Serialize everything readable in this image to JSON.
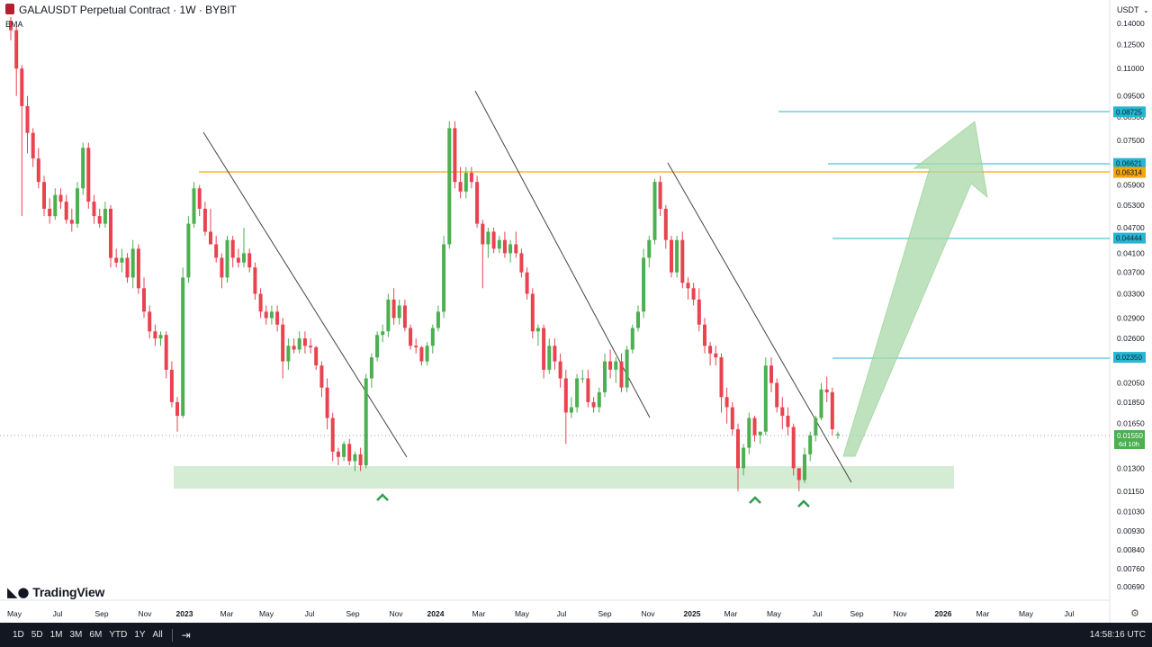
{
  "header": {
    "title": "GALAUSDT Perpetual Contract · 1W · BYBIT",
    "indicator": "EMA"
  },
  "brand": {
    "name": "TradingView",
    "icon": "tradingview-logo-icon"
  },
  "price_scale": {
    "currency_label": "USDT"
  },
  "footer": {
    "timeframes": [
      "1D",
      "5D",
      "1M",
      "3M",
      "6M",
      "YTD",
      "1Y",
      "All"
    ],
    "calendar_icon": "calendar-range-icon",
    "clock": "14:58:16 UTC",
    "settings_icon": "gear-icon"
  },
  "colors": {
    "up": "#4caf50",
    "down": "#e8434f",
    "resistance": "#f2a60c",
    "target": "#26b5d2",
    "support_zone": "#cfeacf",
    "arrow": "#a9d9a7"
  },
  "chart_data": {
    "type": "candlestick",
    "symbol": "GALAUSDT",
    "interval": "1W",
    "exchange": "BYBIT",
    "yscale": "log",
    "ylim": [
      0.0063,
      0.145
    ],
    "y_ticks": [
      "0.14000",
      "0.12500",
      "0.11000",
      "0.09500",
      "0.08500",
      "0.07500",
      "0.06500",
      "0.05900",
      "0.05300",
      "0.04700",
      "0.04100",
      "0.03700",
      "0.03300",
      "0.02900",
      "0.02600",
      "0.02050",
      "0.01850",
      "0.01650",
      "0.01300",
      "0.01150",
      "0.01030",
      "0.00930",
      "0.00840",
      "0.00760",
      "0.00690"
    ],
    "x_ticks": [
      "May",
      "Jul",
      "Sep",
      "Nov",
      "2023",
      "Mar",
      "May",
      "Jul",
      "Sep",
      "Nov",
      "2024",
      "Mar",
      "May",
      "Jul",
      "Sep",
      "Nov",
      "2025",
      "Mar",
      "May",
      "Jul",
      "Sep",
      "Nov",
      "2026",
      "Mar",
      "May",
      "Jul"
    ],
    "bold_x_ticks": [
      "2023",
      "2024",
      "2025",
      "2026"
    ],
    "current_price": {
      "value": "0.01550",
      "countdown": "6d 10h"
    },
    "level_labels": [
      {
        "value": "0.08725",
        "kind": "target"
      },
      {
        "value": "0.06621",
        "kind": "target"
      },
      {
        "value": "0.06314",
        "kind": "resistance"
      },
      {
        "value": "0.04444",
        "kind": "target"
      },
      {
        "value": "0.02350",
        "kind": "target"
      }
    ],
    "support_zone": [
      0.0117,
      0.0133
    ],
    "support_markers": 3,
    "candles_ohlc": [
      [
        0.142,
        0.145,
        0.128,
        0.135
      ],
      [
        0.135,
        0.138,
        0.095,
        0.11
      ],
      [
        0.11,
        0.112,
        0.05,
        0.09
      ],
      [
        0.09,
        0.095,
        0.07,
        0.078
      ],
      [
        0.078,
        0.08,
        0.065,
        0.068
      ],
      [
        0.068,
        0.072,
        0.058,
        0.06
      ],
      [
        0.06,
        0.062,
        0.05,
        0.052
      ],
      [
        0.052,
        0.055,
        0.048,
        0.05
      ],
      [
        0.05,
        0.058,
        0.049,
        0.056
      ],
      [
        0.056,
        0.058,
        0.052,
        0.054
      ],
      [
        0.054,
        0.056,
        0.048,
        0.049
      ],
      [
        0.049,
        0.052,
        0.046,
        0.048
      ],
      [
        0.048,
        0.06,
        0.047,
        0.058
      ],
      [
        0.058,
        0.074,
        0.056,
        0.072
      ],
      [
        0.072,
        0.074,
        0.052,
        0.054
      ],
      [
        0.054,
        0.056,
        0.048,
        0.05
      ],
      [
        0.05,
        0.052,
        0.047,
        0.048
      ],
      [
        0.048,
        0.054,
        0.047,
        0.052
      ],
      [
        0.052,
        0.053,
        0.038,
        0.04
      ],
      [
        0.04,
        0.042,
        0.038,
        0.039
      ],
      [
        0.039,
        0.042,
        0.037,
        0.04
      ],
      [
        0.04,
        0.041,
        0.035,
        0.036
      ],
      [
        0.036,
        0.044,
        0.034,
        0.042
      ],
      [
        0.042,
        0.043,
        0.033,
        0.034
      ],
      [
        0.034,
        0.036,
        0.029,
        0.03
      ],
      [
        0.03,
        0.031,
        0.026,
        0.027
      ],
      [
        0.027,
        0.028,
        0.025,
        0.026
      ],
      [
        0.026,
        0.027,
        0.025,
        0.0265
      ],
      [
        0.0265,
        0.027,
        0.021,
        0.022
      ],
      [
        0.022,
        0.023,
        0.018,
        0.0185
      ],
      [
        0.0185,
        0.019,
        0.0158,
        0.0172
      ],
      [
        0.0172,
        0.038,
        0.017,
        0.036
      ],
      [
        0.036,
        0.05,
        0.035,
        0.048
      ],
      [
        0.048,
        0.06,
        0.047,
        0.058
      ],
      [
        0.058,
        0.059,
        0.05,
        0.052
      ],
      [
        0.052,
        0.054,
        0.045,
        0.046
      ],
      [
        0.046,
        0.052,
        0.044,
        0.043
      ],
      [
        0.043,
        0.045,
        0.039,
        0.04
      ],
      [
        0.04,
        0.041,
        0.034,
        0.036
      ],
      [
        0.036,
        0.045,
        0.035,
        0.044
      ],
      [
        0.044,
        0.045,
        0.038,
        0.04
      ],
      [
        0.04,
        0.042,
        0.038,
        0.039
      ],
      [
        0.039,
        0.047,
        0.038,
        0.041
      ],
      [
        0.041,
        0.042,
        0.037,
        0.038
      ],
      [
        0.038,
        0.039,
        0.032,
        0.033
      ],
      [
        0.033,
        0.034,
        0.029,
        0.03
      ],
      [
        0.03,
        0.031,
        0.028,
        0.029
      ],
      [
        0.029,
        0.031,
        0.028,
        0.03
      ],
      [
        0.03,
        0.031,
        0.027,
        0.028
      ],
      [
        0.028,
        0.029,
        0.021,
        0.023
      ],
      [
        0.023,
        0.026,
        0.022,
        0.025
      ],
      [
        0.025,
        0.026,
        0.024,
        0.0245
      ],
      [
        0.0245,
        0.027,
        0.024,
        0.026
      ],
      [
        0.026,
        0.027,
        0.024,
        0.025
      ],
      [
        0.025,
        0.026,
        0.024,
        0.0248
      ],
      [
        0.0248,
        0.025,
        0.022,
        0.0225
      ],
      [
        0.0225,
        0.023,
        0.019,
        0.02
      ],
      [
        0.02,
        0.021,
        0.016,
        0.017
      ],
      [
        0.017,
        0.0175,
        0.0135,
        0.0142
      ],
      [
        0.0142,
        0.0145,
        0.0132,
        0.0138
      ],
      [
        0.0138,
        0.015,
        0.0135,
        0.0148
      ],
      [
        0.0148,
        0.0152,
        0.0132,
        0.0135
      ],
      [
        0.0135,
        0.0142,
        0.0128,
        0.014
      ],
      [
        0.014,
        0.0145,
        0.0128,
        0.0132
      ],
      [
        0.0132,
        0.0215,
        0.013,
        0.021
      ],
      [
        0.021,
        0.024,
        0.02,
        0.0235
      ],
      [
        0.0235,
        0.027,
        0.023,
        0.0265
      ],
      [
        0.0265,
        0.028,
        0.0255,
        0.027
      ],
      [
        0.027,
        0.033,
        0.0262,
        0.032
      ],
      [
        0.032,
        0.034,
        0.028,
        0.029
      ],
      [
        0.029,
        0.032,
        0.028,
        0.031
      ],
      [
        0.031,
        0.032,
        0.027,
        0.0275
      ],
      [
        0.0275,
        0.028,
        0.0245,
        0.025
      ],
      [
        0.025,
        0.026,
        0.024,
        0.0248
      ],
      [
        0.0248,
        0.025,
        0.0225,
        0.023
      ],
      [
        0.023,
        0.0255,
        0.0225,
        0.025
      ],
      [
        0.025,
        0.028,
        0.024,
        0.0275
      ],
      [
        0.0275,
        0.031,
        0.027,
        0.03
      ],
      [
        0.03,
        0.045,
        0.029,
        0.043
      ],
      [
        0.043,
        0.083,
        0.042,
        0.08
      ],
      [
        0.08,
        0.083,
        0.058,
        0.06
      ],
      [
        0.06,
        0.065,
        0.055,
        0.057
      ],
      [
        0.057,
        0.065,
        0.055,
        0.063
      ],
      [
        0.063,
        0.065,
        0.058,
        0.06
      ],
      [
        0.06,
        0.062,
        0.047,
        0.048
      ],
      [
        0.048,
        0.049,
        0.034,
        0.043
      ],
      [
        0.043,
        0.047,
        0.04,
        0.046
      ],
      [
        0.046,
        0.047,
        0.041,
        0.042
      ],
      [
        0.042,
        0.045,
        0.041,
        0.044
      ],
      [
        0.044,
        0.046,
        0.04,
        0.041
      ],
      [
        0.041,
        0.044,
        0.039,
        0.043
      ],
      [
        0.043,
        0.046,
        0.04,
        0.041
      ],
      [
        0.041,
        0.042,
        0.036,
        0.037
      ],
      [
        0.037,
        0.038,
        0.032,
        0.033
      ],
      [
        0.033,
        0.034,
        0.026,
        0.027
      ],
      [
        0.027,
        0.028,
        0.025,
        0.0275
      ],
      [
        0.0275,
        0.028,
        0.021,
        0.022
      ],
      [
        0.022,
        0.026,
        0.0215,
        0.025
      ],
      [
        0.025,
        0.026,
        0.022,
        0.023
      ],
      [
        0.023,
        0.024,
        0.02,
        0.021
      ],
      [
        0.021,
        0.022,
        0.0148,
        0.0175
      ],
      [
        0.0175,
        0.019,
        0.017,
        0.018
      ],
      [
        0.018,
        0.0215,
        0.0175,
        0.021
      ],
      [
        0.021,
        0.022,
        0.0205,
        0.021
      ],
      [
        0.021,
        0.022,
        0.018,
        0.0185
      ],
      [
        0.0185,
        0.019,
        0.0175,
        0.018
      ],
      [
        0.018,
        0.02,
        0.0175,
        0.0195
      ],
      [
        0.0195,
        0.024,
        0.019,
        0.023
      ],
      [
        0.023,
        0.0245,
        0.021,
        0.022
      ],
      [
        0.022,
        0.0235,
        0.0205,
        0.023
      ],
      [
        0.023,
        0.024,
        0.0195,
        0.02
      ],
      [
        0.02,
        0.025,
        0.0195,
        0.0245
      ],
      [
        0.0245,
        0.028,
        0.024,
        0.0275
      ],
      [
        0.0275,
        0.031,
        0.027,
        0.03
      ],
      [
        0.03,
        0.042,
        0.029,
        0.04
      ],
      [
        0.04,
        0.045,
        0.038,
        0.044
      ],
      [
        0.044,
        0.061,
        0.043,
        0.06
      ],
      [
        0.06,
        0.062,
        0.05,
        0.052
      ],
      [
        0.052,
        0.053,
        0.042,
        0.044
      ],
      [
        0.044,
        0.045,
        0.036,
        0.037
      ],
      [
        0.037,
        0.045,
        0.036,
        0.044
      ],
      [
        0.044,
        0.046,
        0.034,
        0.035
      ],
      [
        0.035,
        0.036,
        0.032,
        0.034
      ],
      [
        0.034,
        0.035,
        0.031,
        0.032
      ],
      [
        0.032,
        0.034,
        0.027,
        0.028
      ],
      [
        0.028,
        0.029,
        0.024,
        0.025
      ],
      [
        0.025,
        0.0255,
        0.0225,
        0.024
      ],
      [
        0.024,
        0.025,
        0.0225,
        0.0235
      ],
      [
        0.0235,
        0.024,
        0.0175,
        0.019
      ],
      [
        0.019,
        0.02,
        0.0165,
        0.018
      ],
      [
        0.018,
        0.0185,
        0.0155,
        0.016
      ],
      [
        0.016,
        0.0165,
        0.0115,
        0.013
      ],
      [
        0.013,
        0.0148,
        0.0125,
        0.0145
      ],
      [
        0.0145,
        0.0175,
        0.014,
        0.017
      ],
      [
        0.017,
        0.0172,
        0.015,
        0.0155
      ],
      [
        0.0155,
        0.0158,
        0.0148,
        0.0158
      ],
      [
        0.0158,
        0.0235,
        0.0155,
        0.0225
      ],
      [
        0.0225,
        0.0235,
        0.0195,
        0.0205
      ],
      [
        0.0205,
        0.021,
        0.0175,
        0.018
      ],
      [
        0.018,
        0.019,
        0.016,
        0.0172
      ],
      [
        0.0172,
        0.018,
        0.0155,
        0.0162
      ],
      [
        0.0162,
        0.0165,
        0.0125,
        0.013
      ],
      [
        0.013,
        0.0125,
        0.0115,
        0.0122
      ],
      [
        0.0122,
        0.0145,
        0.012,
        0.014
      ],
      [
        0.014,
        0.0158,
        0.0135,
        0.0155
      ],
      [
        0.0155,
        0.0172,
        0.015,
        0.017
      ],
      [
        0.017,
        0.0205,
        0.0168,
        0.0198
      ],
      [
        0.0198,
        0.0212,
        0.0185,
        0.0195
      ],
      [
        0.0195,
        0.02,
        0.0155,
        0.016
      ],
      [
        0.0155,
        0.0158,
        0.0152,
        0.0156
      ]
    ]
  }
}
